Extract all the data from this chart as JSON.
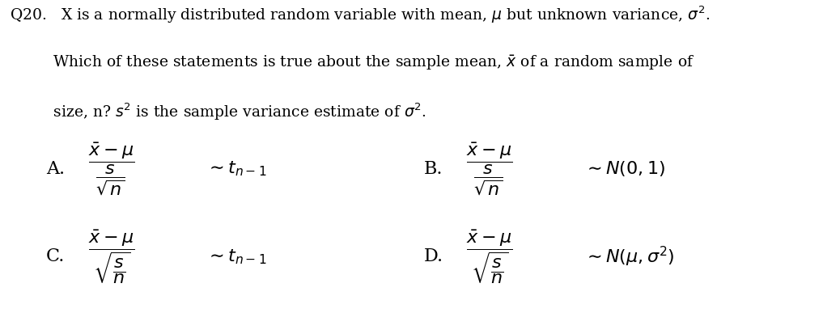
{
  "bg_color": "#ffffff",
  "text_color": "#000000",
  "fig_width": 10.38,
  "fig_height": 3.87,
  "dpi": 100,
  "q_line1": "Q20.   X is a normally distributed random variable with mean, $\\mu$ but unknown variance, $\\sigma^2$.",
  "q_line2": "         Which of these statements is true about the sample mean, $\\bar{x}$ of a random sample of",
  "q_line3": "         size, n? $s^2$ is the sample variance estimate of $\\sigma^2$.",
  "opt_A_label": "A.",
  "opt_A_expr": "$\\dfrac{\\bar{x}-\\mu}{\\dfrac{s}{\\sqrt{n}}}$",
  "opt_A_dist": "$\\sim t_{n-1}$",
  "opt_B_label": "B.",
  "opt_B_expr": "$\\dfrac{\\bar{x}-\\mu}{\\dfrac{s}{\\sqrt{n}}}$",
  "opt_B_dist": "$\\sim N(0,1)$",
  "opt_C_label": "C.",
  "opt_C_expr": "$\\dfrac{\\bar{x}-\\mu}{\\sqrt{\\dfrac{s}{n}}}$",
  "opt_C_dist": "$\\sim t_{n-1}$",
  "opt_D_label": "D.",
  "opt_D_expr": "$\\dfrac{\\bar{x}-\\mu}{\\sqrt{\\dfrac{s}{n}}}$",
  "opt_D_dist": "$\\sim N(\\mu,\\sigma^2)$",
  "font_size_q": 13.5,
  "font_size_opt": 16
}
